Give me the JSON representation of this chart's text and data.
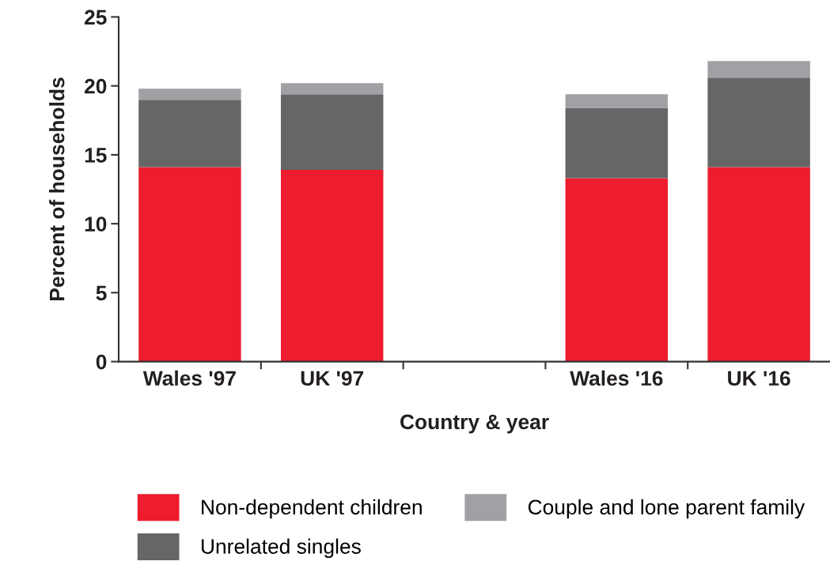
{
  "chart_data": {
    "type": "bar",
    "stacked": true,
    "categories": [
      "Wales '97",
      "UK '97",
      null,
      "Wales '16",
      "UK '16"
    ],
    "series": [
      {
        "name": "Non-dependent children",
        "color": "#ed1c2e",
        "values": [
          14.1,
          13.9,
          null,
          13.3,
          14.1
        ]
      },
      {
        "name": "Unrelated singles",
        "color": "#666666",
        "values": [
          4.9,
          5.5,
          null,
          5.1,
          6.5
        ]
      },
      {
        "name": "Couple and lone parent family",
        "color": "#a0a1a5",
        "values": [
          0.8,
          0.8,
          null,
          1.0,
          1.2
        ]
      }
    ],
    "xlabel": "Country & year",
    "ylabel": "Percent of households",
    "ylim": [
      0,
      25
    ],
    "yticks": [
      0,
      5,
      10,
      15,
      20,
      25
    ],
    "grid": false,
    "legend": "bottom"
  }
}
